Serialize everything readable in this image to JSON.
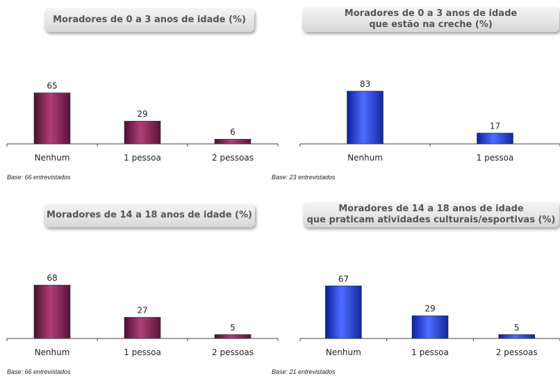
{
  "colors": {
    "maroon": "#7a1e4e",
    "blue": "#1c3fe0"
  },
  "chart_data": [
    {
      "type": "bar",
      "title": "Moradores de 0 a 3 anos de idade (%)",
      "categories": [
        "Nenhum",
        "1 pessoa",
        "2 pessoas"
      ],
      "values": [
        65,
        29,
        6
      ],
      "ylim": [
        0,
        100
      ],
      "color": "maroon",
      "base_note": "Base: 66 entrevistados"
    },
    {
      "type": "bar",
      "title": "Moradores de 0 a 3 anos de idade\nque estão na creche (%)",
      "categories": [
        "Nenhum",
        "1 pessoa"
      ],
      "values": [
        83,
        17
      ],
      "ylim": [
        0,
        100
      ],
      "color": "blue",
      "base_note": "Base: 23 entrevistados"
    },
    {
      "type": "bar",
      "title": "Moradores de 14 a 18 anos de idade (%)",
      "categories": [
        "Nenhum",
        "1 pessoa",
        "2 pessoas"
      ],
      "values": [
        68,
        27,
        5
      ],
      "ylim": [
        0,
        100
      ],
      "color": "maroon",
      "base_note": "Base: 66 entrevistados"
    },
    {
      "type": "bar",
      "title": "Moradores de 14 a 18 anos de idade\nque praticam atividades culturais/esportivas (%)",
      "categories": [
        "Nenhum",
        "1 pessoa",
        "2 pessoas"
      ],
      "values": [
        67,
        29,
        5
      ],
      "ylim": [
        0,
        100
      ],
      "color": "blue",
      "base_note": "Base: 21 entrevistados"
    }
  ]
}
